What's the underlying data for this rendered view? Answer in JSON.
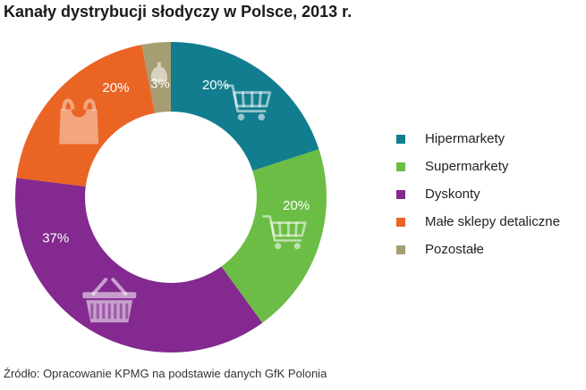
{
  "chart_data": {
    "type": "pie",
    "title": "Kanały dystrybucji słodyczy w Polsce, 2013 r.",
    "categories": [
      "Hipermarkety",
      "Supermarkety",
      "Dyskonty",
      "Małe sklepy detaliczne",
      "Pozostałe"
    ],
    "values": [
      20,
      20,
      37,
      20,
      3
    ],
    "value_labels": [
      "20%",
      "20%",
      "37%",
      "20%",
      "3%"
    ],
    "colors": [
      "#127d8f",
      "#6cbd45",
      "#83298f",
      "#ea6424",
      "#a79d72"
    ],
    "icons": [
      "shopping-cart-icon",
      "shopping-cart-icon",
      "shopping-basket-icon",
      "shopping-bag-icon",
      "sack-icon"
    ],
    "donut": true,
    "legend_position": "right"
  },
  "legend": {
    "items": [
      {
        "label": "Hipermarkety",
        "color": "#127d8f"
      },
      {
        "label": "Supermarkety",
        "color": "#6cbd45"
      },
      {
        "label": "Dyskonty",
        "color": "#83298f"
      },
      {
        "label": "Małe sklepy detaliczne",
        "color": "#ea6424"
      },
      {
        "label": "Pozostałe",
        "color": "#a79d72"
      }
    ]
  },
  "source": "Źródło: Opracowanie KPMG na podstawie danych GfK Polonia"
}
